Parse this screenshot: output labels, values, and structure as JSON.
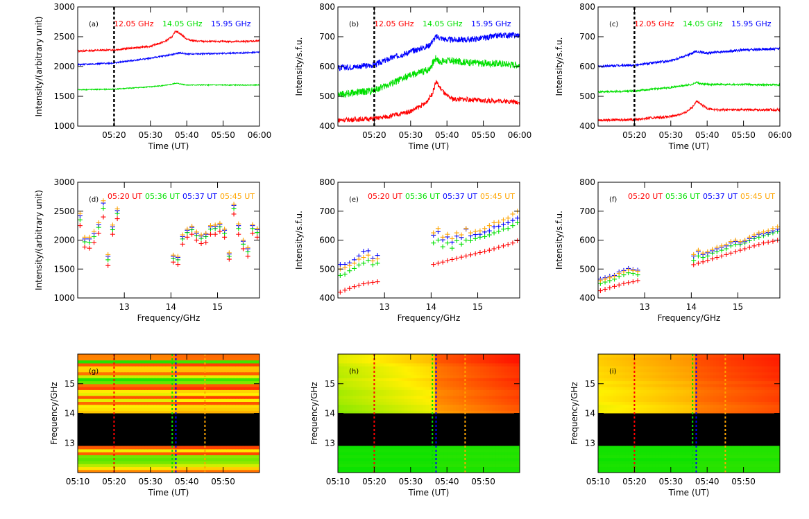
{
  "colors": {
    "red": "#ff0000",
    "green": "#00e000",
    "blue": "#0000ff",
    "orange": "#ffa500",
    "black": "#000000"
  },
  "chart_data": [
    {
      "panel": "(a)",
      "type": "line",
      "xlabel": "Time (UT)",
      "ylabel": "Intensity/(arbitrary unit)",
      "xlim": [
        "05:10",
        "06:00"
      ],
      "ylim": [
        1000,
        3000
      ],
      "xticks": [
        "05:20",
        "05:30",
        "05:40",
        "05:50",
        "06:00"
      ],
      "yticks": [
        "1000",
        "1500",
        "2000",
        "2500",
        "3000"
      ],
      "vline": "05:20",
      "series": [
        {
          "name": "12.05 GHz",
          "color": "red",
          "x": [
            "05:10",
            "05:20",
            "05:25",
            "05:30",
            "05:34",
            "05:36",
            "05:37",
            "05:38",
            "05:40",
            "05:42",
            "05:45",
            "05:50",
            "05:55",
            "06:00"
          ],
          "y": [
            2260,
            2280,
            2310,
            2340,
            2420,
            2500,
            2600,
            2560,
            2460,
            2430,
            2420,
            2420,
            2420,
            2430
          ],
          "noise": 15
        },
        {
          "name": "14.05 GHz",
          "color": "green",
          "x": [
            "05:10",
            "05:20",
            "05:30",
            "05:35",
            "05:37",
            "05:40",
            "05:50",
            "06:00"
          ],
          "y": [
            1610,
            1620,
            1660,
            1690,
            1720,
            1690,
            1690,
            1690
          ],
          "noise": 8
        },
        {
          "name": "15.95 GHz",
          "color": "blue",
          "x": [
            "05:10",
            "05:20",
            "05:30",
            "05:36",
            "05:38",
            "05:40",
            "05:50",
            "06:00"
          ],
          "y": [
            2030,
            2060,
            2140,
            2200,
            2230,
            2210,
            2220,
            2240
          ],
          "noise": 12
        }
      ]
    },
    {
      "panel": "(b)",
      "type": "line",
      "xlabel": "Time (UT)",
      "ylabel": "Intensity/s.f.u.",
      "xlim": [
        "05:10",
        "06:00"
      ],
      "ylim": [
        400,
        800
      ],
      "xticks": [
        "05:20",
        "05:30",
        "05:40",
        "05:50",
        "06:00"
      ],
      "yticks": [
        "400",
        "500",
        "600",
        "700",
        "800"
      ],
      "vline": "05:20",
      "series": [
        {
          "name": "12.05 GHz",
          "color": "red",
          "x": [
            "05:10",
            "05:20",
            "05:25",
            "05:30",
            "05:34",
            "05:36",
            "05:37",
            "05:38",
            "05:40",
            "05:42",
            "05:45",
            "05:50",
            "05:55",
            "06:00"
          ],
          "y": [
            420,
            425,
            435,
            450,
            475,
            510,
            550,
            530,
            500,
            490,
            490,
            485,
            485,
            480
          ],
          "noise": 8
        },
        {
          "name": "14.05 GHz",
          "color": "green",
          "x": [
            "05:10",
            "05:20",
            "05:25",
            "05:30",
            "05:35",
            "05:37",
            "05:38",
            "05:40",
            "05:45",
            "05:50",
            "05:55",
            "06:00"
          ],
          "y": [
            505,
            520,
            545,
            570,
            590,
            630,
            615,
            620,
            615,
            610,
            610,
            605
          ],
          "noise": 12
        },
        {
          "name": "15.95 GHz",
          "color": "blue",
          "x": [
            "05:10",
            "05:20",
            "05:25",
            "05:30",
            "05:35",
            "05:37",
            "05:40",
            "05:45",
            "05:50",
            "05:55",
            "06:00"
          ],
          "y": [
            595,
            605,
            630,
            650,
            670,
            700,
            690,
            690,
            695,
            705,
            705
          ],
          "noise": 10
        }
      ]
    },
    {
      "panel": "(c)",
      "type": "line",
      "xlabel": "Time (UT)",
      "ylabel": "Intensity/s.f.u.",
      "xlim": [
        "05:10",
        "06:00"
      ],
      "ylim": [
        400,
        800
      ],
      "xticks": [
        "05:20",
        "05:30",
        "05:40",
        "05:50",
        "06:00"
      ],
      "yticks": [
        "400",
        "500",
        "600",
        "700",
        "800"
      ],
      "vline": "05:20",
      "series": [
        {
          "name": "12.05 GHz",
          "color": "red",
          "x": [
            "05:10",
            "05:20",
            "05:25",
            "05:30",
            "05:34",
            "05:36",
            "05:37",
            "05:38",
            "05:40",
            "05:42",
            "05:45",
            "05:50",
            "05:55",
            "06:00"
          ],
          "y": [
            420,
            422,
            428,
            432,
            445,
            465,
            485,
            475,
            460,
            455,
            455,
            455,
            455,
            455
          ],
          "noise": 4
        },
        {
          "name": "14.05 GHz",
          "color": "green",
          "x": [
            "05:10",
            "05:20",
            "05:30",
            "05:36",
            "05:37",
            "05:38",
            "05:40",
            "05:50",
            "06:00"
          ],
          "y": [
            515,
            518,
            530,
            540,
            548,
            542,
            540,
            540,
            538
          ],
          "noise": 3
        },
        {
          "name": "15.95 GHz",
          "color": "blue",
          "x": [
            "05:10",
            "05:20",
            "05:25",
            "05:30",
            "05:35",
            "05:37",
            "05:40",
            "05:45",
            "05:50",
            "05:55",
            "06:00"
          ],
          "y": [
            600,
            605,
            612,
            620,
            640,
            650,
            645,
            650,
            655,
            658,
            660
          ],
          "noise": 4
        }
      ]
    },
    {
      "panel": "(d)",
      "type": "scatter",
      "xlabel": "Frequency/GHz",
      "ylabel": "Intensity/(arbitrary unit)",
      "xlim": [
        12,
        15.9
      ],
      "ylim": [
        1000,
        3000
      ],
      "xticks": [
        "13",
        "14",
        "15"
      ],
      "yticks": [
        "1000",
        "1500",
        "2000",
        "2500",
        "3000"
      ],
      "x": [
        12.05,
        12.15,
        12.25,
        12.35,
        12.45,
        12.55,
        12.65,
        12.75,
        12.85,
        14.05,
        14.15,
        14.25,
        14.35,
        14.45,
        14.55,
        14.65,
        14.75,
        14.85,
        14.95,
        15.05,
        15.15,
        15.25,
        15.35,
        15.45,
        15.55,
        15.65,
        15.75,
        15.85
      ],
      "series": [
        {
          "name": "05:20 UT",
          "color": "red",
          "y": [
            2250,
            1880,
            1860,
            1960,
            2120,
            2400,
            1560,
            2100,
            2370,
            1620,
            1580,
            1930,
            2050,
            2100,
            2000,
            1940,
            1960,
            2100,
            2100,
            2150,
            2050,
            1670,
            2450,
            2100,
            1850,
            1720,
            2120,
            2050
          ]
        },
        {
          "name": "05:36 UT",
          "color": "green",
          "y": [
            2350,
            1970,
            1960,
            2060,
            2220,
            2550,
            1660,
            2180,
            2460,
            1680,
            1660,
            2020,
            2130,
            2180,
            2080,
            2030,
            2060,
            2190,
            2200,
            2230,
            2120,
            1720,
            2550,
            2200,
            1930,
            1800,
            2200,
            2130
          ]
        },
        {
          "name": "05:37 UT",
          "color": "blue",
          "y": [
            2420,
            2020,
            2020,
            2120,
            2270,
            2640,
            1720,
            2230,
            2510,
            1720,
            1700,
            2060,
            2170,
            2220,
            2120,
            2070,
            2100,
            2230,
            2240,
            2270,
            2170,
            1760,
            2600,
            2250,
            1980,
            1850,
            2250,
            2180
          ]
        },
        {
          "name": "05:45 UT",
          "color": "orange",
          "y": [
            2460,
            2050,
            2050,
            2150,
            2300,
            2680,
            1750,
            2260,
            2540,
            1740,
            1720,
            2090,
            2190,
            2240,
            2140,
            2090,
            2120,
            2250,
            2260,
            2290,
            2190,
            1780,
            2620,
            2280,
            2000,
            1870,
            2270,
            2200
          ]
        }
      ]
    },
    {
      "panel": "(e)",
      "type": "scatter",
      "xlabel": "Frequency/GHz",
      "ylabel": "Intensity/s.f.u.",
      "xlim": [
        12,
        15.9
      ],
      "ylim": [
        400,
        800
      ],
      "xticks": [
        "13",
        "14",
        "15"
      ],
      "yticks": [
        "400",
        "500",
        "600",
        "700",
        "800"
      ],
      "x": [
        12.05,
        12.15,
        12.25,
        12.35,
        12.45,
        12.55,
        12.65,
        12.75,
        12.85,
        14.05,
        14.15,
        14.25,
        14.35,
        14.45,
        14.55,
        14.65,
        14.75,
        14.85,
        14.95,
        15.05,
        15.15,
        15.25,
        15.35,
        15.45,
        15.55,
        15.65,
        15.75,
        15.85
      ],
      "series": [
        {
          "name": "05:20 UT",
          "color": "red",
          "y": [
            420,
            427,
            433,
            439,
            444,
            449,
            452,
            454,
            456,
            516,
            520,
            524,
            529,
            533,
            537,
            541,
            545,
            549,
            553,
            557,
            561,
            565,
            570,
            575,
            580,
            585,
            590,
            598
          ]
        },
        {
          "name": "05:36 UT",
          "color": "green",
          "y": [
            478,
            482,
            494,
            502,
            514,
            520,
            530,
            515,
            520,
            590,
            600,
            577,
            590,
            572,
            598,
            586,
            600,
            598,
            605,
            610,
            612,
            618,
            625,
            630,
            638,
            640,
            650,
            660
          ]
        },
        {
          "name": "05:37 UT",
          "color": "blue",
          "y": [
            516,
            516,
            521,
            532,
            545,
            561,
            563,
            536,
            547,
            617,
            629,
            601,
            611,
            593,
            614,
            609,
            638,
            615,
            619,
            620,
            628,
            632,
            646,
            648,
            655,
            660,
            668,
            676
          ]
        },
        {
          "name": "05:45 UT",
          "color": "orange",
          "y": [
            500,
            505,
            512,
            520,
            534,
            540,
            548,
            528,
            535,
            625,
            640,
            610,
            620,
            605,
            625,
            618,
            640,
            625,
            630,
            632,
            640,
            650,
            660,
            662,
            670,
            676,
            690,
            700
          ]
        }
      ]
    },
    {
      "panel": "(f)",
      "type": "scatter",
      "xlabel": "Frequency/GHz",
      "ylabel": "Intensity/s.f.u.",
      "xlim": [
        12,
        15.9
      ],
      "ylim": [
        400,
        800
      ],
      "xticks": [
        "13",
        "14",
        "15"
      ],
      "yticks": [
        "400",
        "500",
        "600",
        "700",
        "800"
      ],
      "x": [
        12.05,
        12.15,
        12.25,
        12.35,
        12.45,
        12.55,
        12.65,
        12.75,
        12.85,
        14.05,
        14.15,
        14.25,
        14.35,
        14.45,
        14.55,
        14.65,
        14.75,
        14.85,
        14.95,
        15.05,
        15.15,
        15.25,
        15.35,
        15.45,
        15.55,
        15.65,
        15.75,
        15.85
      ],
      "series": [
        {
          "name": "05:20 UT",
          "color": "red",
          "y": [
            425,
            430,
            435,
            440,
            445,
            450,
            453,
            456,
            460,
            515,
            520,
            525,
            530,
            535,
            540,
            545,
            550,
            555,
            560,
            565,
            570,
            575,
            580,
            585,
            590,
            593,
            596,
            600
          ]
        },
        {
          "name": "05:36 UT",
          "color": "green",
          "y": [
            450,
            455,
            460,
            465,
            475,
            480,
            487,
            485,
            480,
            530,
            545,
            540,
            545,
            555,
            560,
            565,
            570,
            580,
            585,
            585,
            590,
            598,
            605,
            610,
            615,
            620,
            625,
            630
          ]
        },
        {
          "name": "05:37 UT",
          "color": "blue",
          "y": [
            465,
            470,
            475,
            478,
            490,
            495,
            502,
            498,
            496,
            545,
            560,
            550,
            556,
            563,
            570,
            575,
            580,
            590,
            595,
            590,
            596,
            605,
            612,
            620,
            622,
            626,
            632,
            638
          ]
        },
        {
          "name": "05:45 UT",
          "color": "orange",
          "y": [
            460,
            465,
            470,
            475,
            485,
            490,
            497,
            495,
            492,
            550,
            565,
            555,
            560,
            568,
            575,
            580,
            585,
            595,
            600,
            595,
            600,
            610,
            618,
            625,
            628,
            632,
            640,
            646
          ]
        }
      ]
    },
    {
      "panel": "(g)",
      "type": "heatmap",
      "xlabel": "Time (UT)",
      "ylabel": "Frequency/GHz",
      "xlim": [
        "05:10",
        "06:00"
      ],
      "ylim": [
        12,
        16
      ],
      "xticks": [
        "05:10",
        "05:20",
        "05:30",
        "05:40",
        "05:50"
      ],
      "yticks": [
        "13",
        "14",
        "15"
      ],
      "gap": [
        12.9,
        14.0
      ],
      "vlines": [
        {
          "time": "05:20",
          "color": "red"
        },
        {
          "time": "05:36",
          "color": "green"
        },
        {
          "time": "05:37",
          "color": "blue"
        },
        {
          "time": "05:45",
          "color": "orange"
        }
      ]
    },
    {
      "panel": "(h)",
      "type": "heatmap",
      "xlabel": "Time (UT)",
      "ylabel": "Frequency/GHz",
      "xlim": [
        "05:10",
        "06:00"
      ],
      "ylim": [
        12,
        16
      ],
      "xticks": [
        "05:10",
        "05:20",
        "05:30",
        "05:40",
        "05:50"
      ],
      "yticks": [
        "13",
        "14",
        "15"
      ],
      "gap": [
        12.9,
        14.0
      ],
      "vlines": [
        {
          "time": "05:20",
          "color": "red"
        },
        {
          "time": "05:36",
          "color": "green"
        },
        {
          "time": "05:37",
          "color": "blue"
        },
        {
          "time": "05:45",
          "color": "orange"
        }
      ]
    },
    {
      "panel": "(i)",
      "type": "heatmap",
      "xlabel": "Time (UT)",
      "ylabel": "Frequency/GHz",
      "xlim": [
        "05:10",
        "06:00"
      ],
      "ylim": [
        12,
        16
      ],
      "xticks": [
        "05:10",
        "05:20",
        "05:30",
        "05:40",
        "05:50"
      ],
      "yticks": [
        "13",
        "14",
        "15"
      ],
      "gap": [
        12.9,
        14.0
      ],
      "vlines": [
        {
          "time": "05:20",
          "color": "red"
        },
        {
          "time": "05:36",
          "color": "green"
        },
        {
          "time": "05:37",
          "color": "blue"
        },
        {
          "time": "05:45",
          "color": "orange"
        }
      ]
    }
  ]
}
